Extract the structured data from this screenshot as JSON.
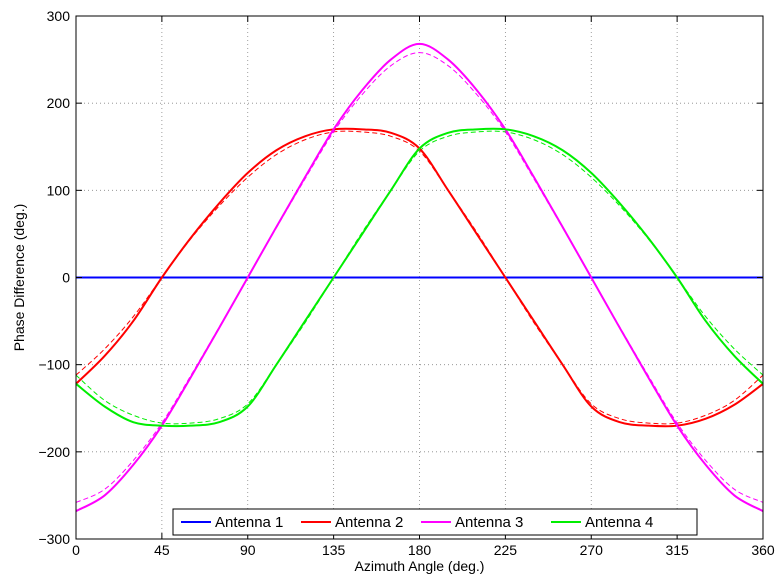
{
  "chart_data": {
    "type": "line",
    "title": "",
    "xlabel": "Azimuth Angle (deg.)",
    "ylabel": "Phase Difference (deg.)",
    "xlim": [
      0,
      360
    ],
    "ylim": [
      -300,
      300
    ],
    "xticks": [
      0,
      45,
      90,
      135,
      180,
      225,
      270,
      315,
      360
    ],
    "yticks": [
      -300,
      -200,
      -100,
      0,
      100,
      200,
      300
    ],
    "ytick_labels": [
      "−300",
      "−200",
      "−100",
      "0",
      "100",
      "200",
      "300"
    ],
    "grid": true,
    "legend_position": "bottom-center",
    "legend_orientation": "horizontal",
    "series": [
      {
        "name": "Antenna 1",
        "color": "#0000ff",
        "x": [
          0,
          45,
          90,
          135,
          180,
          225,
          270,
          315,
          360
        ],
        "values": [
          0,
          0,
          0,
          0,
          0,
          0,
          0,
          0,
          0
        ]
      },
      {
        "name": "Antenna 2",
        "color": "#ff0000",
        "x": [
          0,
          15,
          30,
          45,
          60,
          75,
          90,
          105,
          120,
          135,
          150,
          165,
          180,
          195,
          210,
          225,
          240,
          255,
          270,
          285,
          300,
          315,
          330,
          345,
          360
        ],
        "values": [
          -122,
          -90,
          -50,
          0,
          45,
          85,
          120,
          146,
          162,
          170,
          170,
          166,
          148,
          100,
          50,
          0,
          -50,
          -100,
          -148,
          -166,
          -170,
          -170,
          -162,
          -146,
          -122
        ]
      },
      {
        "name": "Antenna 3",
        "color": "#ff00ff",
        "x": [
          0,
          15,
          30,
          45,
          60,
          75,
          90,
          105,
          120,
          135,
          150,
          165,
          180,
          195,
          210,
          225,
          240,
          255,
          270,
          285,
          300,
          315,
          330,
          345,
          360
        ],
        "values": [
          -268,
          -250,
          -215,
          -170,
          -115,
          -58,
          0,
          58,
          115,
          170,
          215,
          250,
          268,
          250,
          215,
          170,
          115,
          58,
          0,
          -58,
          -115,
          -170,
          -215,
          -250,
          -268
        ]
      },
      {
        "name": "Antenna 4",
        "color": "#00ee00",
        "x": [
          0,
          15,
          30,
          45,
          60,
          75,
          90,
          105,
          120,
          135,
          150,
          165,
          180,
          195,
          210,
          225,
          240,
          255,
          270,
          285,
          300,
          315,
          330,
          345,
          360
        ],
        "values": [
          -122,
          -148,
          -166,
          -170,
          -170,
          -166,
          -148,
          -100,
          -50,
          0,
          50,
          100,
          148,
          166,
          170,
          170,
          162,
          146,
          120,
          85,
          45,
          0,
          -50,
          -90,
          -122
        ]
      }
    ],
    "reference_series": [
      {
        "color": "#0000ff",
        "x": [
          0,
          360
        ],
        "values": [
          0,
          0
        ]
      },
      {
        "color": "#ff0000",
        "x": [
          0,
          15,
          30,
          45,
          60,
          75,
          90,
          105,
          120,
          135,
          150,
          165,
          180,
          195,
          210,
          225,
          240,
          255,
          270,
          285,
          300,
          315,
          330,
          345,
          360
        ],
        "values": [
          -112,
          -82,
          -45,
          0,
          44,
          82,
          115,
          141,
          158,
          167,
          167,
          162,
          145,
          100,
          52,
          0,
          -52,
          -100,
          -145,
          -162,
          -167,
          -167,
          -158,
          -141,
          -112
        ]
      },
      {
        "color": "#ff00ff",
        "x": [
          0,
          15,
          30,
          45,
          60,
          75,
          90,
          105,
          120,
          135,
          150,
          165,
          180,
          195,
          210,
          225,
          240,
          255,
          270,
          285,
          300,
          315,
          330,
          345,
          360
        ],
        "values": [
          -258,
          -243,
          -210,
          -167,
          -113,
          -57,
          0,
          57,
          113,
          167,
          210,
          243,
          258,
          243,
          210,
          167,
          113,
          57,
          0,
          -57,
          -113,
          -167,
          -210,
          -243,
          -258
        ]
      },
      {
        "color": "#00ee00",
        "x": [
          0,
          15,
          30,
          45,
          60,
          75,
          90,
          105,
          120,
          135,
          150,
          165,
          180,
          195,
          210,
          225,
          240,
          255,
          270,
          285,
          300,
          315,
          330,
          345,
          360
        ],
        "values": [
          -112,
          -141,
          -158,
          -167,
          -167,
          -162,
          -145,
          -100,
          -52,
          0,
          52,
          100,
          145,
          162,
          167,
          167,
          158,
          141,
          115,
          82,
          44,
          0,
          -45,
          -82,
          -112
        ]
      }
    ]
  }
}
